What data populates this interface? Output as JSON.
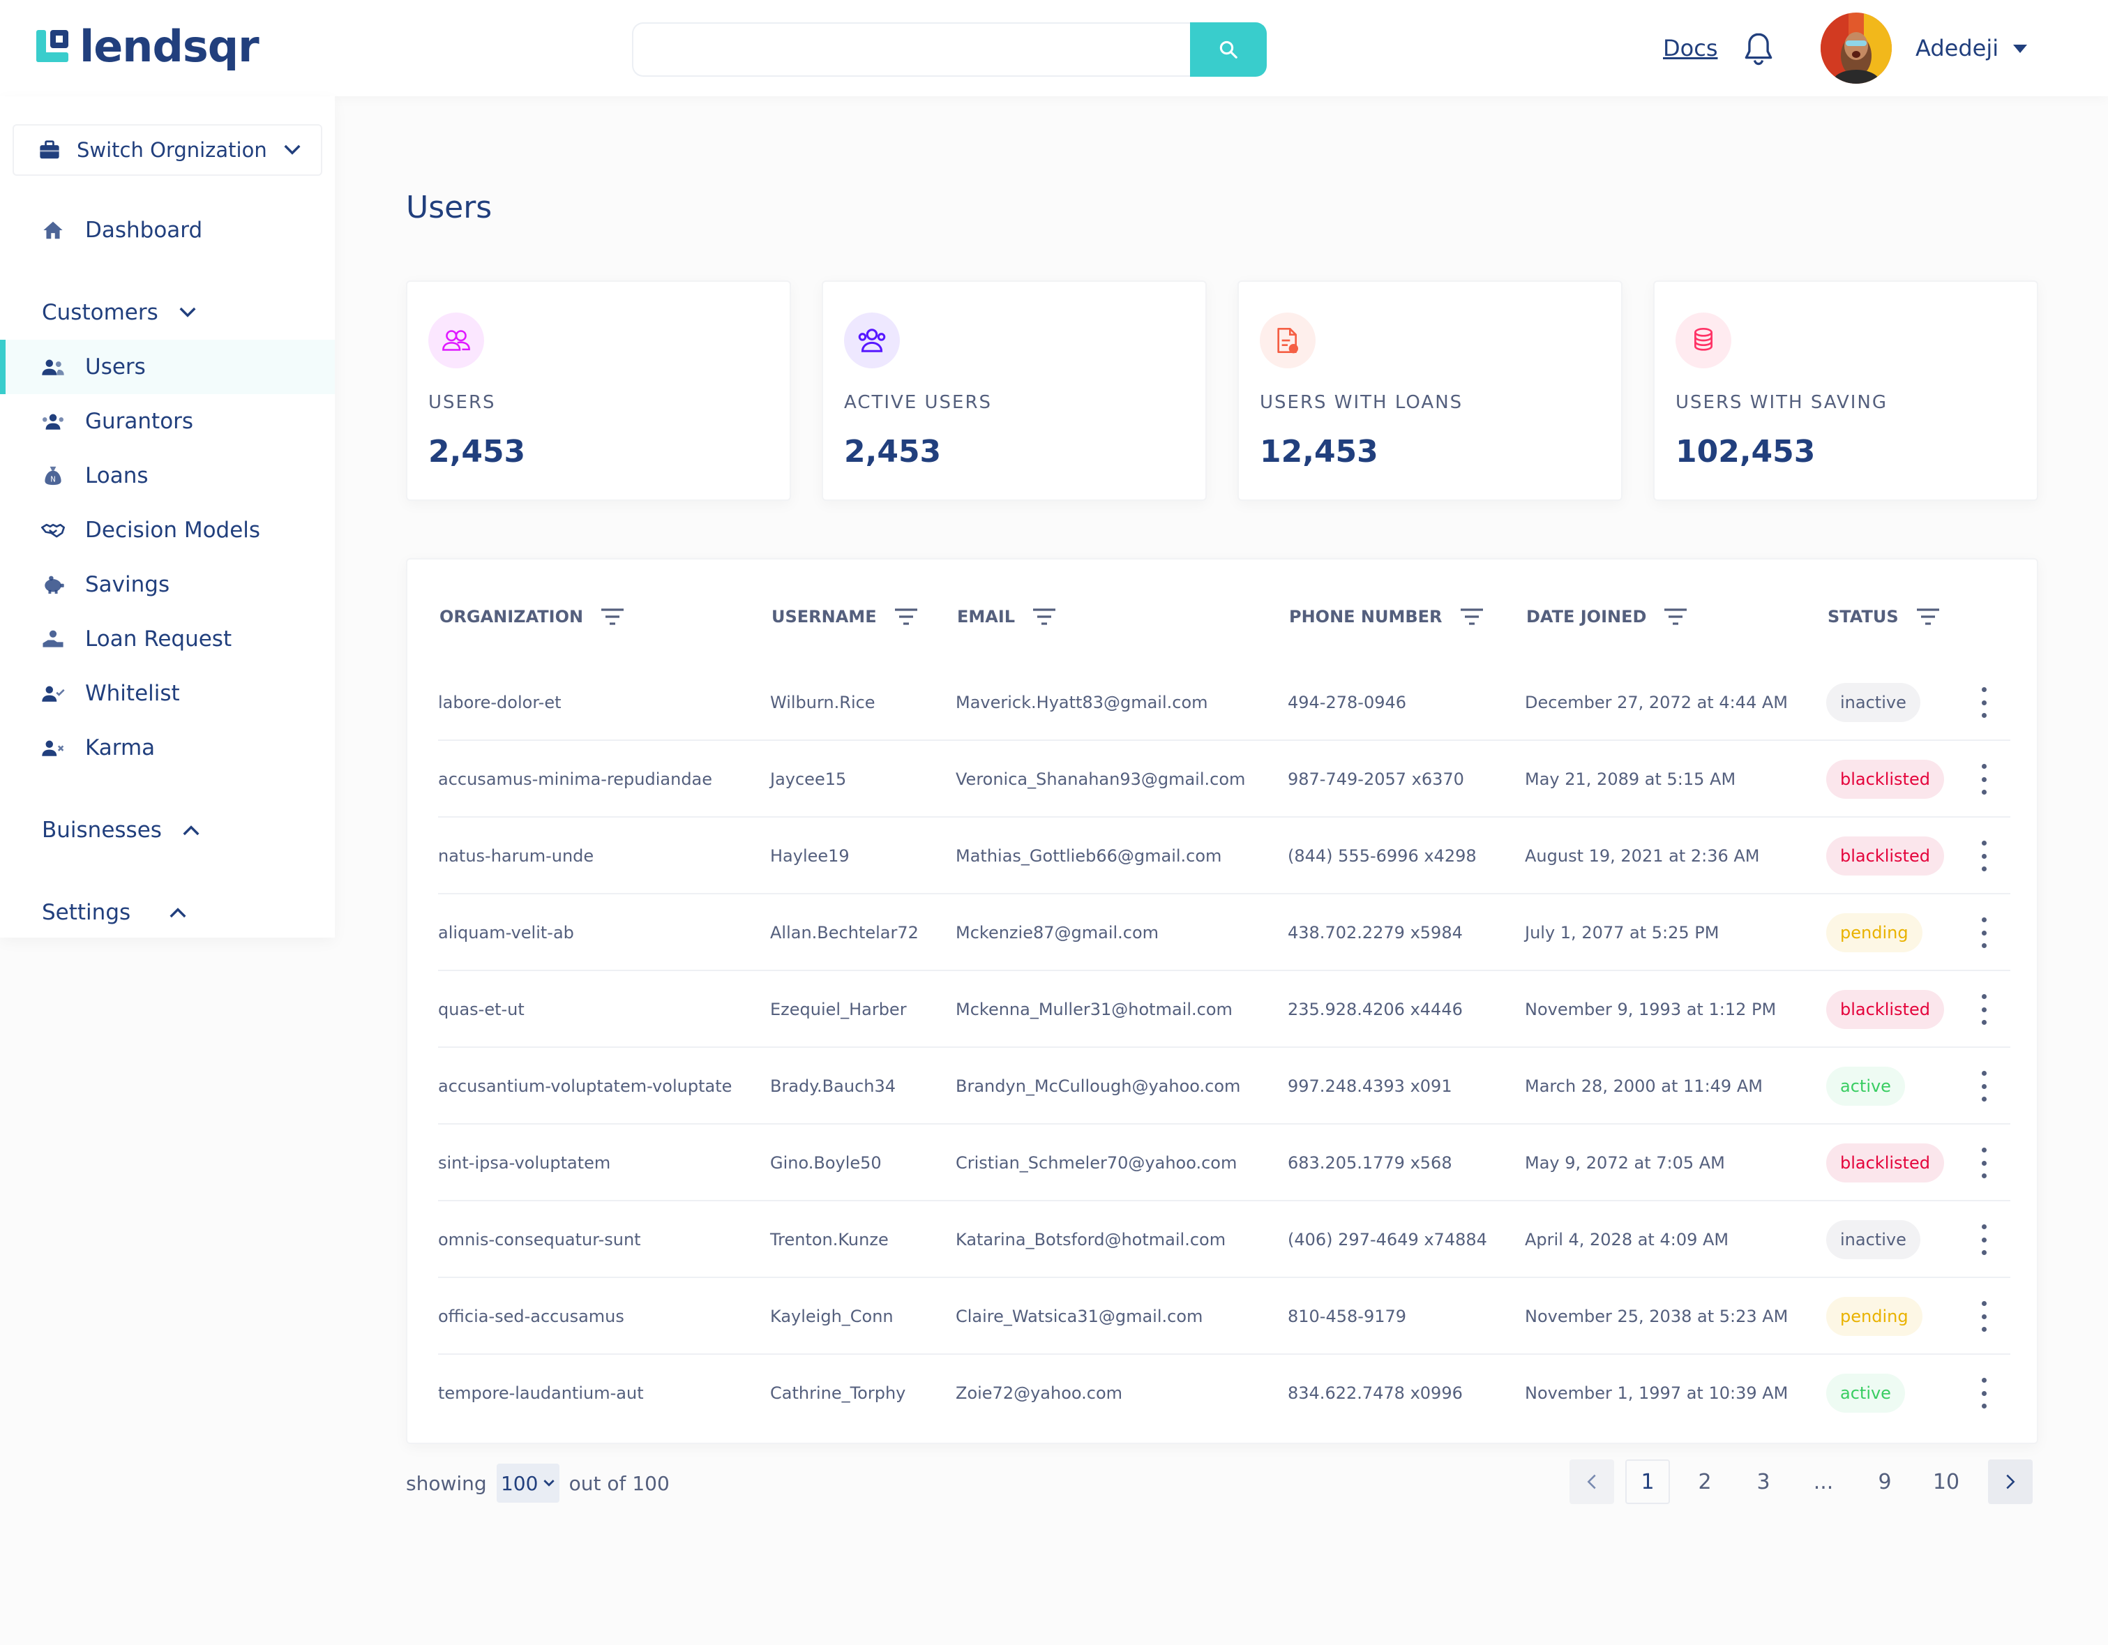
{
  "brand": {
    "name": "lendsqr",
    "accent": "#39cdcc",
    "primary": "#213f7d"
  },
  "header": {
    "search_placeholder": "",
    "docs_label": "Docs",
    "user_name": "Adedeji"
  },
  "sidebar": {
    "switch_org": "Switch Orgnization",
    "dashboard": "Dashboard",
    "customers_section": "Customers",
    "customers": [
      "Users",
      "Gurantors",
      "Loans",
      "Decision Models",
      "Savings",
      "Loan Request",
      "Whitelist",
      "Karma"
    ],
    "businesses_section": "Buisnesses",
    "settings_section": "Settings"
  },
  "page": {
    "title": "Users"
  },
  "stats": [
    {
      "label": "USERS",
      "value": "2,453",
      "icon": "users-icon",
      "color": "#df18ff"
    },
    {
      "label": "ACTIVE USERS",
      "value": "2,453",
      "icon": "active-users-icon",
      "color": "#5718ff"
    },
    {
      "label": "USERS WITH LOANS",
      "value": "12,453",
      "icon": "loans-doc-icon",
      "color": "#f55f44"
    },
    {
      "label": "USERS WITH SAVING",
      "value": "102,453",
      "icon": "coins-icon",
      "color": "#ff3366"
    }
  ],
  "table": {
    "headers": [
      "ORGANIZATION",
      "USERNAME",
      "EMAIL",
      "PHONE NUMBER",
      "DATE JOINED",
      "STATUS"
    ],
    "rows": [
      {
        "org": "labore-dolor-et",
        "username": "Wilburn.Rice",
        "email": "Maverick.Hyatt83@gmail.com",
        "phone": "494-278-0946",
        "date": "December 27, 2072 at 4:44 AM",
        "status": "inactive"
      },
      {
        "org": "accusamus-minima-repudiandae",
        "username": "Jaycee15",
        "email": "Veronica_Shanahan93@gmail.com",
        "phone": "987-749-2057 x6370",
        "date": "May 21, 2089 at 5:15 AM",
        "status": "blacklisted"
      },
      {
        "org": "natus-harum-unde",
        "username": "Haylee19",
        "email": "Mathias_Gottlieb66@gmail.com",
        "phone": "(844) 555-6996 x4298",
        "date": "August 19, 2021 at 2:36 AM",
        "status": "blacklisted"
      },
      {
        "org": "aliquam-velit-ab",
        "username": "Allan.Bechtelar72",
        "email": "Mckenzie87@gmail.com",
        "phone": "438.702.2279 x5984",
        "date": "July 1, 2077 at 5:25 PM",
        "status": "pending"
      },
      {
        "org": "quas-et-ut",
        "username": "Ezequiel_Harber",
        "email": "Mckenna_Muller31@hotmail.com",
        "phone": "235.928.4206 x4446",
        "date": "November 9, 1993 at 1:12 PM",
        "status": "blacklisted"
      },
      {
        "org": "accusantium-voluptatem-voluptate",
        "username": "Brady.Bauch34",
        "email": "Brandyn_McCullough@yahoo.com",
        "phone": "997.248.4393 x091",
        "date": "March 28, 2000 at 11:49 AM",
        "status": "active"
      },
      {
        "org": "sint-ipsa-voluptatem",
        "username": "Gino.Boyle50",
        "email": "Cristian_Schmeler70@yahoo.com",
        "phone": "683.205.1779 x568",
        "date": "May 9, 2072 at 7:05 AM",
        "status": "blacklisted"
      },
      {
        "org": "omnis-consequatur-sunt",
        "username": "Trenton.Kunze",
        "email": "Katarina_Botsford@hotmail.com",
        "phone": "(406) 297-4649 x74884",
        "date": "April 4, 2028 at 4:09 AM",
        "status": "inactive"
      },
      {
        "org": "officia-sed-accusamus",
        "username": "Kayleigh_Conn",
        "email": "Claire_Watsica31@gmail.com",
        "phone": "810-458-9179",
        "date": "November 25, 2038 at 5:23 AM",
        "status": "pending"
      },
      {
        "org": "tempore-laudantium-aut",
        "username": "Cathrine_Torphy",
        "email": "Zoie72@yahoo.com",
        "phone": "834.622.7478 x0996",
        "date": "November 1, 1997 at 10:39 AM",
        "status": "active"
      }
    ]
  },
  "pagination": {
    "showing_label": "showing",
    "page_size": "100",
    "out_of_label": "out of 100",
    "pages": [
      "1",
      "2",
      "3",
      "...",
      "9",
      "10"
    ],
    "current": "1"
  }
}
